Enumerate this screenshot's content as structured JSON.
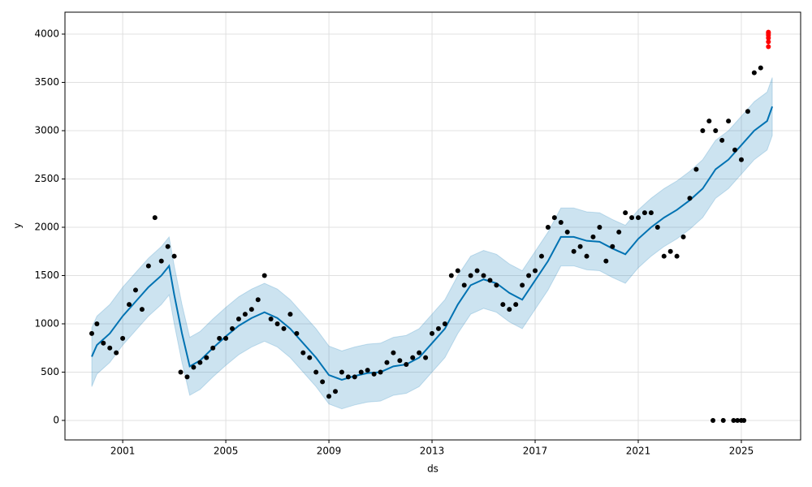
{
  "chart_data": {
    "type": "forecast",
    "x_label": "ds",
    "y_label": "y",
    "xlim": [
      1998.76,
      2027.3
    ],
    "ylim": [
      -202,
      4227
    ],
    "xticks": [
      2001,
      2005,
      2009,
      2013,
      2017,
      2021,
      2025
    ],
    "yticks": [
      0,
      500,
      1000,
      1500,
      2000,
      2500,
      3000,
      3500,
      4000
    ],
    "grid": true,
    "series": [
      {
        "style": "band",
        "color": "#0072b2",
        "x": [
          1999.8,
          2000.0,
          2000.5,
          2001.0,
          2001.5,
          2002.0,
          2002.5,
          2002.8,
          2003.0,
          2003.3,
          2003.6,
          2004.0,
          2004.5,
          2005.0,
          2005.5,
          2006.0,
          2006.5,
          2007.0,
          2007.5,
          2008.0,
          2008.5,
          2009.0,
          2009.5,
          2010.0,
          2010.5,
          2011.0,
          2011.5,
          2012.0,
          2012.5,
          2013.0,
          2013.5,
          2014.0,
          2014.5,
          2015.0,
          2015.5,
          2016.0,
          2016.5,
          2017.0,
          2017.5,
          2018.0,
          2018.5,
          2019.0,
          2019.5,
          2020.0,
          2020.5,
          2021.0,
          2021.5,
          2022.0,
          2022.5,
          2023.0,
          2023.5,
          2024.0,
          2024.5,
          2025.0,
          2025.5,
          2026.0,
          2026.2
        ],
        "lower": [
          350,
          480,
          600,
          780,
          930,
          1080,
          1200,
          1300,
          1000,
          600,
          260,
          320,
          450,
          570,
          680,
          760,
          820,
          760,
          650,
          500,
          350,
          170,
          120,
          160,
          190,
          200,
          260,
          280,
          350,
          500,
          650,
          900,
          1100,
          1160,
          1120,
          1020,
          950,
          1150,
          1350,
          1600,
          1600,
          1560,
          1550,
          1480,
          1420,
          1580,
          1700,
          1800,
          1880,
          1980,
          2100,
          2300,
          2400,
          2550,
          2700,
          2800,
          2950
        ],
        "upper": [
          960,
          1080,
          1200,
          1380,
          1530,
          1680,
          1800,
          1900,
          1600,
          1200,
          860,
          920,
          1050,
          1170,
          1280,
          1360,
          1420,
          1360,
          1250,
          1100,
          950,
          770,
          720,
          760,
          790,
          800,
          860,
          880,
          950,
          1100,
          1250,
          1500,
          1700,
          1760,
          1720,
          1620,
          1550,
          1750,
          1950,
          2200,
          2200,
          2160,
          2150,
          2080,
          2020,
          2180,
          2300,
          2400,
          2480,
          2580,
          2700,
          2900,
          3000,
          3150,
          3300,
          3400,
          3550
        ]
      },
      {
        "style": "line",
        "color": "#0072b2",
        "x": [
          1999.8,
          2000.0,
          2000.5,
          2001.0,
          2001.5,
          2002.0,
          2002.5,
          2002.8,
          2003.0,
          2003.3,
          2003.6,
          2004.0,
          2004.5,
          2005.0,
          2005.5,
          2006.0,
          2006.5,
          2007.0,
          2007.5,
          2008.0,
          2008.5,
          2009.0,
          2009.5,
          2010.0,
          2010.5,
          2011.0,
          2011.5,
          2012.0,
          2012.5,
          2013.0,
          2013.5,
          2014.0,
          2014.5,
          2015.0,
          2015.5,
          2016.0,
          2016.5,
          2017.0,
          2017.5,
          2018.0,
          2018.5,
          2019.0,
          2019.5,
          2020.0,
          2020.5,
          2021.0,
          2021.5,
          2022.0,
          2022.5,
          2023.0,
          2023.5,
          2024.0,
          2024.5,
          2025.0,
          2025.5,
          2026.0,
          2026.2
        ],
        "values": [
          660,
          780,
          900,
          1080,
          1230,
          1380,
          1500,
          1600,
          1300,
          900,
          560,
          620,
          750,
          870,
          980,
          1060,
          1120,
          1060,
          950,
          800,
          650,
          470,
          420,
          460,
          490,
          500,
          560,
          580,
          650,
          800,
          950,
          1200,
          1400,
          1460,
          1420,
          1320,
          1250,
          1450,
          1650,
          1900,
          1900,
          1860,
          1850,
          1780,
          1720,
          1880,
          2000,
          2100,
          2180,
          2280,
          2400,
          2600,
          2700,
          2850,
          3000,
          3100,
          3250
        ]
      },
      {
        "style": "points",
        "color": "#000000",
        "x": [
          1999.8,
          2000.0,
          2000.25,
          2000.5,
          2000.75,
          2001.0,
          2001.25,
          2001.5,
          2001.75,
          2002.0,
          2002.25,
          2002.5,
          2002.75,
          2003.0,
          2003.25,
          2003.5,
          2003.75,
          2004.0,
          2004.25,
          2004.5,
          2004.75,
          2005.0,
          2005.25,
          2005.5,
          2005.75,
          2006.0,
          2006.25,
          2006.5,
          2006.75,
          2007.0,
          2007.25,
          2007.5,
          2007.75,
          2008.0,
          2008.25,
          2008.5,
          2008.75,
          2009.0,
          2009.25,
          2009.5,
          2009.75,
          2010.0,
          2010.25,
          2010.5,
          2010.75,
          2011.0,
          2011.25,
          2011.5,
          2011.75,
          2012.0,
          2012.25,
          2012.5,
          2012.75,
          2013.0,
          2013.25,
          2013.5,
          2013.75,
          2014.0,
          2014.25,
          2014.5,
          2014.75,
          2015.0,
          2015.25,
          2015.5,
          2015.75,
          2016.0,
          2016.25,
          2016.5,
          2016.75,
          2017.0,
          2017.25,
          2017.5,
          2017.75,
          2018.0,
          2018.25,
          2018.5,
          2018.75,
          2019.0,
          2019.25,
          2019.5,
          2019.75,
          2020.0,
          2020.25,
          2020.5,
          2020.75,
          2021.0,
          2021.25,
          2021.5,
          2021.75,
          2022.0,
          2022.25,
          2022.5,
          2022.75,
          2023.0,
          2023.25,
          2023.5,
          2023.75,
          2024.0,
          2024.25,
          2024.5,
          2024.75,
          2025.0,
          2025.25,
          2025.5,
          2025.75,
          2023.9,
          2024.3,
          2024.7,
          2024.85,
          2025.0,
          2025.1
        ],
        "values": [
          900,
          1000,
          800,
          750,
          700,
          850,
          1200,
          1350,
          1150,
          1600,
          2100,
          1650,
          1800,
          1700,
          500,
          450,
          550,
          600,
          650,
          750,
          850,
          850,
          950,
          1050,
          1100,
          1150,
          1250,
          1500,
          1050,
          1000,
          950,
          1100,
          900,
          700,
          650,
          500,
          400,
          250,
          300,
          500,
          450,
          450,
          500,
          520,
          480,
          500,
          600,
          700,
          620,
          580,
          650,
          700,
          650,
          900,
          950,
          1000,
          1500,
          1550,
          1400,
          1500,
          1550,
          1500,
          1450,
          1400,
          1200,
          1150,
          1200,
          1400,
          1500,
          1550,
          1700,
          2000,
          2100,
          2050,
          1950,
          1750,
          1800,
          1700,
          1900,
          2000,
          1650,
          1800,
          1950,
          2150,
          2100,
          2100,
          2150,
          2150,
          2000,
          1700,
          1750,
          1700,
          1900,
          2300,
          2600,
          3000,
          3100,
          3000,
          2900,
          3100,
          2800,
          2700,
          3200,
          3600,
          3650,
          0,
          0,
          0,
          0,
          0,
          0
        ]
      },
      {
        "style": "points",
        "color": "#ff0000",
        "x": [
          2026.05,
          2026.05,
          2026.05,
          2026.05,
          2026.05,
          2026.05
        ],
        "values": [
          3870,
          3920,
          3960,
          3990,
          4010,
          4020
        ]
      }
    ]
  }
}
